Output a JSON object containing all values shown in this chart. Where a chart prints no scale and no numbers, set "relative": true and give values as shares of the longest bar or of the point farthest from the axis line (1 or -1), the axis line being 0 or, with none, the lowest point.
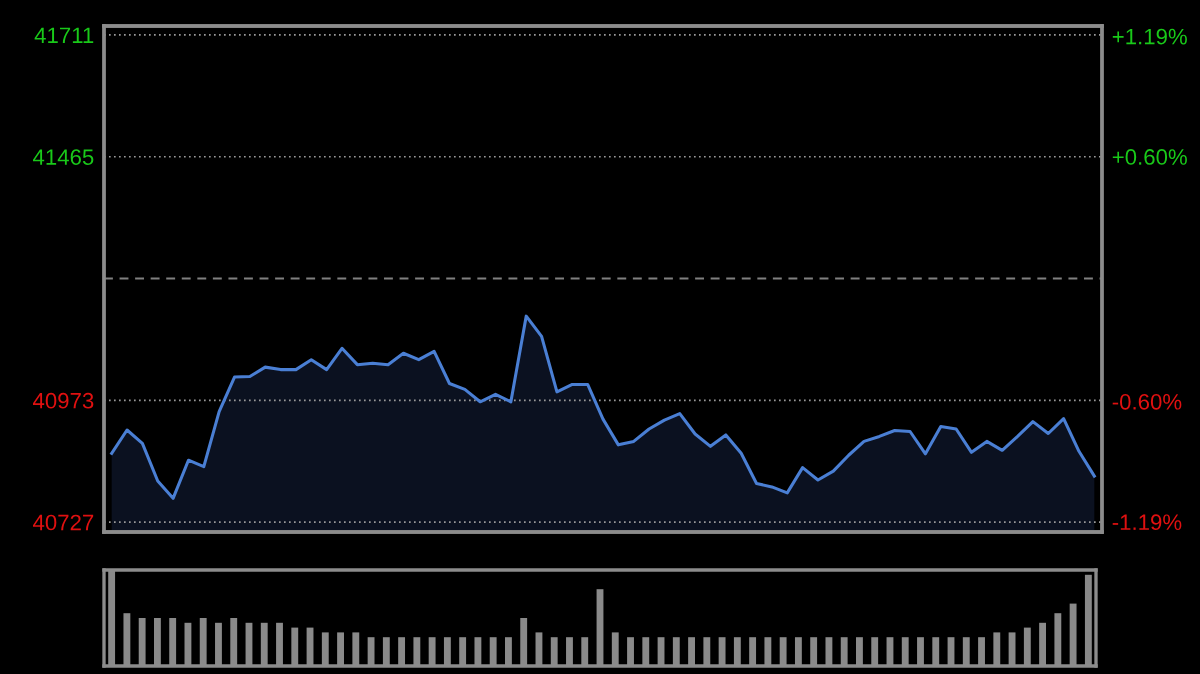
{
  "chart_data": [
    {
      "type": "area",
      "categories": [
        null,
        null,
        null,
        null,
        null,
        null,
        null,
        null,
        null,
        null,
        null,
        null,
        null,
        null,
        null,
        null,
        null,
        null,
        null,
        null,
        null,
        null,
        null,
        null,
        null,
        null,
        null,
        null,
        null,
        null,
        null,
        null,
        null,
        null,
        null,
        null,
        null,
        null,
        null,
        null,
        null,
        null,
        null,
        null,
        null,
        null,
        null,
        null,
        null,
        null,
        null,
        null,
        null,
        null,
        null,
        null,
        null,
        null,
        null,
        null,
        null,
        null,
        null,
        null,
        null
      ],
      "series": [
        {
          "color": "#4a7fd4",
          "values": [
            40866,
            40913,
            40886,
            40810,
            40775,
            40852,
            40839,
            40950,
            41020,
            41021,
            41040,
            41035,
            41035,
            41055,
            41035,
            41078,
            41045,
            41048,
            41045,
            41068,
            41055,
            41072,
            41007,
            40995,
            40970,
            40985,
            40970,
            41143,
            41102,
            40990,
            41005,
            41005,
            40935,
            40883,
            40890,
            40915,
            40933,
            40946,
            40905,
            40880,
            40903,
            40866,
            40805,
            40798,
            40786,
            40837,
            40812,
            40830,
            40862,
            40890,
            40900,
            40912,
            40910,
            40865,
            40920,
            40915,
            40868,
            40890,
            40872,
            40900,
            40930,
            40906,
            40936,
            40870,
            40820
          ]
        }
      ],
      "ylim": [
        40707,
        41729
      ],
      "yticks": [
        40727,
        40973,
        41465,
        41711
      ],
      "y2lim": [
        -1.24,
        1.24
      ],
      "y2ticks": [
        {
          "value": -1.19,
          "label": "-1.19%"
        },
        {
          "value": -0.6,
          "label": "-0.60%"
        },
        {
          "value": 0.6,
          "label": "+0.60%"
        },
        {
          "value": 1.19,
          "label": "+1.19%"
        }
      ],
      "ref_lines": [
        {
          "axis": "y",
          "value": 41219,
          "color": "#808080",
          "line_style": "dashed"
        }
      ],
      "grid": "y",
      "line_style": "solid"
    },
    {
      "type": "bar",
      "relative": true,
      "categories": [
        null,
        null,
        null,
        null,
        null,
        null,
        null,
        null,
        null,
        null,
        null,
        null,
        null,
        null,
        null,
        null,
        null,
        null,
        null,
        null,
        null,
        null,
        null,
        null,
        null,
        null,
        null,
        null,
        null,
        null,
        null,
        null,
        null,
        null,
        null,
        null,
        null,
        null,
        null,
        null,
        null,
        null,
        null,
        null,
        null,
        null,
        null,
        null,
        null,
        null,
        null,
        null,
        null,
        null,
        null,
        null,
        null,
        null,
        null,
        null,
        null,
        null,
        null,
        null,
        null
      ],
      "series": [
        {
          "color": "#8a8a8a",
          "values": [
            1.0,
            0.55,
            0.5,
            0.5,
            0.5,
            0.45,
            0.5,
            0.45,
            0.5,
            0.45,
            0.45,
            0.45,
            0.4,
            0.4,
            0.35,
            0.35,
            0.35,
            0.3,
            0.3,
            0.3,
            0.3,
            0.3,
            0.3,
            0.3,
            0.3,
            0.3,
            0.3,
            0.5,
            0.35,
            0.3,
            0.3,
            0.3,
            0.8,
            0.35,
            0.3,
            0.3,
            0.3,
            0.3,
            0.3,
            0.3,
            0.3,
            0.3,
            0.3,
            0.3,
            0.3,
            0.3,
            0.3,
            0.3,
            0.3,
            0.3,
            0.3,
            0.3,
            0.3,
            0.3,
            0.3,
            0.3,
            0.3,
            0.3,
            0.35,
            0.35,
            0.4,
            0.45,
            0.55,
            0.65,
            0.95
          ]
        }
      ]
    }
  ]
}
